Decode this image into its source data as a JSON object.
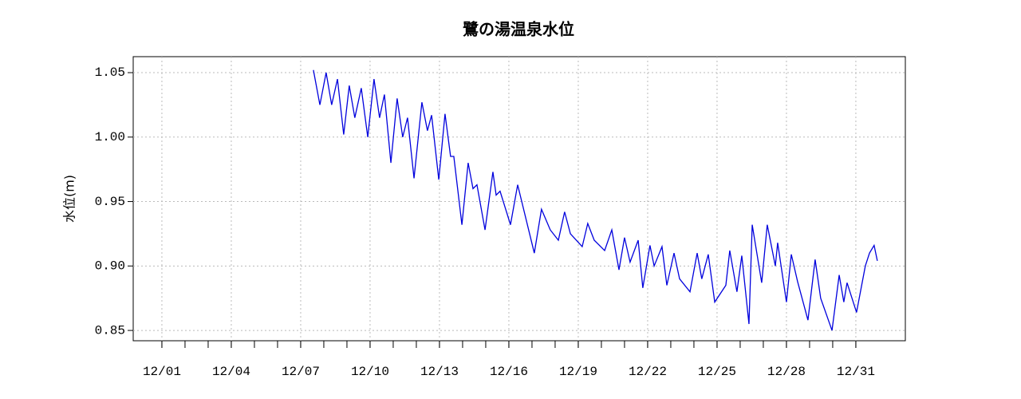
{
  "chart_data": {
    "type": "line",
    "title": "鷺の湯温泉水位",
    "y_label": "水位(m)",
    "x": [
      7.55,
      7.83,
      8.1,
      8.34,
      8.59,
      8.86,
      9.1,
      9.34,
      9.62,
      9.9,
      10.17,
      10.41,
      10.62,
      10.9,
      11.17,
      11.41,
      11.62,
      11.9,
      12.24,
      12.48,
      12.66,
      12.97,
      13.24,
      13.48,
      13.62,
      13.97,
      14.24,
      14.45,
      14.62,
      14.97,
      15.31,
      15.45,
      15.62,
      16.07,
      16.38,
      17.1,
      17.41,
      17.79,
      18.14,
      18.41,
      18.66,
      19.17,
      19.41,
      19.69,
      20.14,
      20.45,
      20.76,
      21.0,
      21.24,
      21.59,
      21.79,
      22.1,
      22.28,
      22.62,
      22.83,
      23.14,
      23.38,
      23.83,
      24.14,
      24.34,
      24.62,
      24.9,
      25.38,
      25.55,
      25.86,
      26.07,
      26.38,
      26.52,
      26.93,
      27.17,
      27.52,
      27.62,
      28.0,
      28.21,
      28.48,
      28.93,
      29.24,
      29.48,
      29.97,
      30.28,
      30.48,
      30.62,
      31.03,
      31.41,
      31.59,
      31.79,
      31.93
    ],
    "series": [
      {
        "name": "水位",
        "color": "#0000dd",
        "values": [
          1.052,
          1.025,
          1.05,
          1.025,
          1.045,
          1.002,
          1.04,
          1.015,
          1.038,
          1.0,
          1.045,
          1.015,
          1.033,
          0.98,
          1.03,
          1.0,
          1.015,
          0.968,
          1.027,
          1.005,
          1.017,
          0.967,
          1.018,
          0.985,
          0.985,
          0.932,
          0.98,
          0.96,
          0.963,
          0.928,
          0.973,
          0.955,
          0.958,
          0.932,
          0.963,
          0.91,
          0.944,
          0.928,
          0.92,
          0.942,
          0.925,
          0.915,
          0.933,
          0.92,
          0.912,
          0.928,
          0.897,
          0.922,
          0.903,
          0.92,
          0.883,
          0.916,
          0.9,
          0.915,
          0.885,
          0.91,
          0.89,
          0.88,
          0.91,
          0.89,
          0.909,
          0.872,
          0.885,
          0.912,
          0.88,
          0.908,
          0.855,
          0.932,
          0.887,
          0.932,
          0.9,
          0.918,
          0.872,
          0.909,
          0.888,
          0.858,
          0.905,
          0.875,
          0.85,
          0.893,
          0.872,
          0.887,
          0.864,
          0.9,
          0.91,
          0.916,
          0.904
        ]
      }
    ],
    "xlim": [
      -0.24,
      33.14
    ],
    "xticks": [
      {
        "value": 1,
        "label": "12/01"
      },
      {
        "value": 4,
        "label": "12/04"
      },
      {
        "value": 7,
        "label": "12/07"
      },
      {
        "value": 10,
        "label": "12/10"
      },
      {
        "value": 13,
        "label": "12/13"
      },
      {
        "value": 16,
        "label": "12/16"
      },
      {
        "value": 19,
        "label": "12/19"
      },
      {
        "value": 22,
        "label": "12/22"
      },
      {
        "value": 25,
        "label": "12/25"
      },
      {
        "value": 28,
        "label": "12/28"
      },
      {
        "value": 31,
        "label": "12/31"
      }
    ],
    "xminor_ticks": [
      1,
      2,
      3,
      4,
      5,
      6,
      7,
      8,
      9,
      10,
      11,
      12,
      13,
      14,
      15,
      16,
      17,
      18,
      19,
      20,
      21,
      22,
      23,
      24,
      25,
      26,
      27,
      28,
      29,
      30,
      31
    ],
    "ylim": [
      0.842,
      1.0624
    ],
    "yticks": [
      0.85,
      {
        "value": 0.9,
        "label": "0.90"
      },
      0.95,
      {
        "value": 1.0,
        "label": "1.00"
      },
      1.05
    ],
    "grid": true
  }
}
